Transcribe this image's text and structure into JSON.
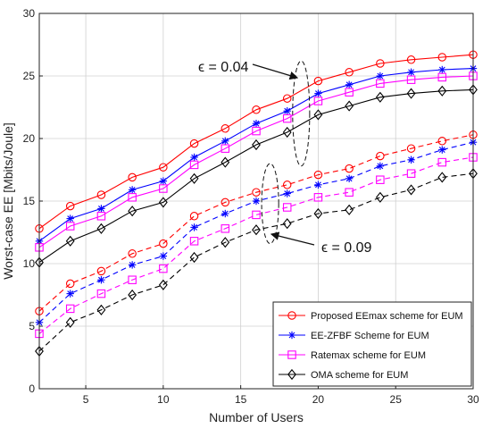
{
  "chart_data": {
    "type": "line",
    "xlabel": "Number of Users",
    "ylabel": "Worst-case EE [Mbits/Joule]",
    "xlim": [
      2,
      30
    ],
    "ylim": [
      0,
      30
    ],
    "xticks": [
      5,
      10,
      15,
      20,
      25,
      30
    ],
    "yticks": [
      0,
      5,
      10,
      15,
      20,
      25,
      30
    ],
    "grid": true,
    "legend_position": "bottom-right",
    "x": [
      2,
      4,
      6,
      8,
      10,
      12,
      14,
      16,
      18,
      20,
      22,
      24,
      26,
      28,
      30
    ],
    "legend": [
      {
        "label": "Proposed EEmax scheme for EUM",
        "color": "#ff0000",
        "marker": "circle"
      },
      {
        "label": "EE-ZFBF Scheme for EUM",
        "color": "#0000ff",
        "marker": "asterisk"
      },
      {
        "label": "Ratemax scheme for EUM",
        "color": "#ff00ff",
        "marker": "square"
      },
      {
        "label": "OMA scheme for EUM",
        "color": "#000000",
        "marker": "diamond"
      }
    ],
    "series": [
      {
        "group": "eps_0.04",
        "color": "#ff0000",
        "marker": "circle",
        "dash": "solid",
        "values": [
          12.8,
          14.6,
          15.5,
          16.9,
          17.7,
          19.6,
          20.8,
          22.3,
          23.2,
          24.6,
          25.3,
          26.0,
          26.3,
          26.5,
          26.7
        ]
      },
      {
        "group": "eps_0.04",
        "color": "#0000ff",
        "marker": "asterisk",
        "dash": "solid",
        "values": [
          11.8,
          13.6,
          14.4,
          15.9,
          16.6,
          18.5,
          19.8,
          21.2,
          22.2,
          23.6,
          24.3,
          25.0,
          25.3,
          25.5,
          25.6
        ]
      },
      {
        "group": "eps_0.04",
        "color": "#ff00ff",
        "marker": "square",
        "dash": "solid",
        "values": [
          11.3,
          13.0,
          13.8,
          15.3,
          16.0,
          17.9,
          19.2,
          20.6,
          21.6,
          23.0,
          23.7,
          24.4,
          24.7,
          24.9,
          25.0
        ]
      },
      {
        "group": "eps_0.04",
        "color": "#000000",
        "marker": "diamond",
        "dash": "solid",
        "values": [
          10.1,
          11.8,
          12.8,
          14.2,
          14.9,
          16.8,
          18.1,
          19.5,
          20.5,
          21.9,
          22.6,
          23.3,
          23.6,
          23.8,
          23.9
        ]
      },
      {
        "group": "eps_0.09",
        "color": "#ff0000",
        "marker": "circle",
        "dash": "dashed",
        "values": [
          6.2,
          8.4,
          9.4,
          10.8,
          11.6,
          13.8,
          14.9,
          15.7,
          16.3,
          17.1,
          17.6,
          18.6,
          19.2,
          19.8,
          20.3
        ]
      },
      {
        "group": "eps_0.09",
        "color": "#0000ff",
        "marker": "asterisk",
        "dash": "dashed",
        "values": [
          5.3,
          7.6,
          8.7,
          9.9,
          10.6,
          12.9,
          14.0,
          15.0,
          15.6,
          16.3,
          16.8,
          17.8,
          18.3,
          19.1,
          19.7
        ]
      },
      {
        "group": "eps_0.09",
        "color": "#ff00ff",
        "marker": "square",
        "dash": "dashed",
        "values": [
          4.4,
          6.4,
          7.6,
          8.7,
          9.6,
          11.8,
          12.8,
          13.9,
          14.5,
          15.3,
          15.7,
          16.7,
          17.2,
          18.1,
          18.5
        ]
      },
      {
        "group": "eps_0.09",
        "color": "#000000",
        "marker": "diamond",
        "dash": "dashed",
        "values": [
          3.0,
          5.3,
          6.3,
          7.5,
          8.3,
          10.5,
          11.7,
          12.7,
          13.2,
          14.0,
          14.3,
          15.3,
          15.9,
          16.9,
          17.2
        ]
      }
    ],
    "annotations": [
      {
        "text": "ϵ = 0.04",
        "target_group": "eps_0.04",
        "ellipse_center": [
          18.9,
          22.0
        ],
        "ellipse_radii": [
          0.55,
          4.2
        ]
      },
      {
        "text": "ϵ = 0.09",
        "target_group": "eps_0.09",
        "ellipse_center": [
          16.9,
          14.8
        ],
        "ellipse_radii": [
          0.55,
          3.2
        ]
      }
    ]
  }
}
